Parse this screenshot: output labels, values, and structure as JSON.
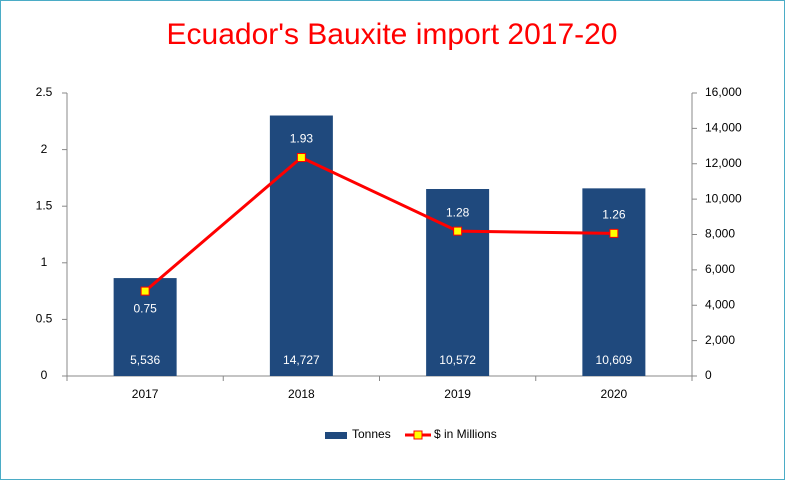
{
  "chart_data": {
    "type": "bar",
    "title": "Ecuador's Bauxite import 2017-20",
    "categories": [
      "2017",
      "2018",
      "2019",
      "2020"
    ],
    "series": [
      {
        "name": "Tonnes",
        "type": "bar",
        "axis": "y2",
        "color": "#1f497d",
        "values": [
          5536,
          14727,
          10572,
          10609
        ],
        "value_labels": [
          "5,536",
          "14,727",
          "10,572",
          "10,609"
        ]
      },
      {
        "name": "$ in Millions",
        "type": "line",
        "color": "#ff0000",
        "marker_color": "#ffff00",
        "values": [
          0.75,
          1.93,
          1.28,
          1.26
        ]
      }
    ],
    "ylim": [
      0,
      2.5
    ],
    "yticks": [
      0,
      0.5,
      1,
      1.5,
      2,
      2.5
    ],
    "y2lim": [
      0,
      16000
    ],
    "y2ticks": [
      0,
      {
        "value": 2000,
        "label": "2,000"
      },
      {
        "value": 4000,
        "label": "4,000"
      },
      {
        "value": 6000,
        "label": "6,000"
      },
      {
        "value": 8000,
        "label": "8,000"
      },
      {
        "value": 10000,
        "label": "10,000"
      },
      {
        "value": 12000,
        "label": "12,000"
      },
      {
        "value": 14000,
        "label": "14,000"
      },
      {
        "value": 16000,
        "label": "16,000"
      }
    ],
    "legend": "bottom",
    "grid": false
  }
}
